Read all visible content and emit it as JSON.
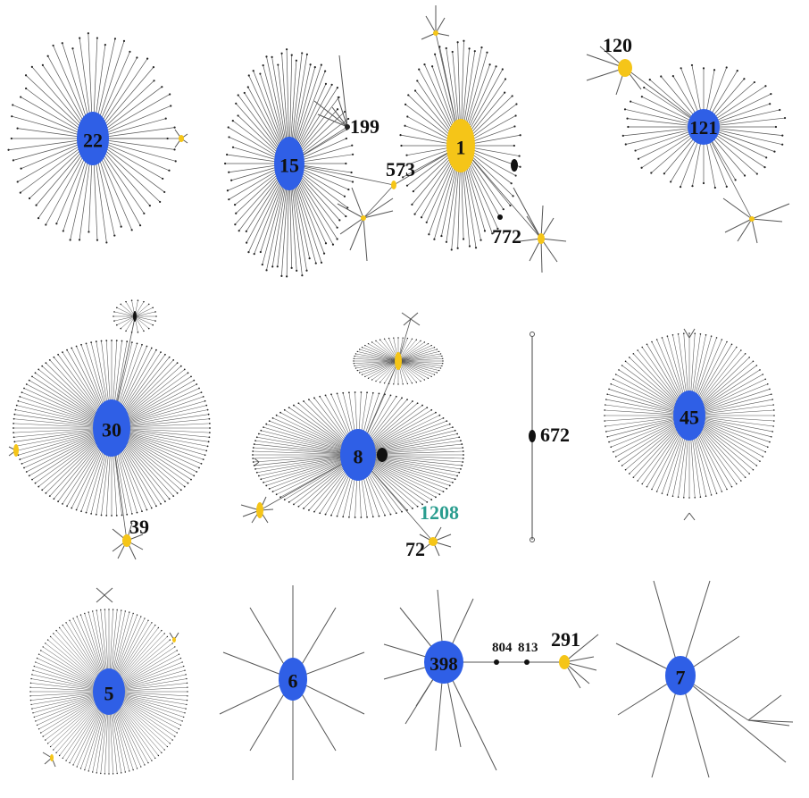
{
  "colors": {
    "hub_blue": "#2f5fe6",
    "hub_yellow": "#f5c518",
    "edge": "#555555",
    "teal_label": "#2a9d8f"
  },
  "networks": [
    {
      "id": "net-22",
      "hub_label": "22",
      "hub_color": "blue"
    },
    {
      "id": "net-15",
      "hub_label": "15",
      "hub_color": "blue"
    },
    {
      "id": "net-1",
      "hub_label": "1",
      "hub_color": "yellow"
    },
    {
      "id": "net-121",
      "hub_label": "121",
      "hub_color": "blue"
    },
    {
      "id": "net-30",
      "hub_label": "30",
      "hub_color": "blue"
    },
    {
      "id": "net-8",
      "hub_label": "8",
      "hub_color": "blue"
    },
    {
      "id": "net-45",
      "hub_label": "45",
      "hub_color": "blue"
    },
    {
      "id": "net-5",
      "hub_label": "5",
      "hub_color": "blue"
    },
    {
      "id": "net-6",
      "hub_label": "6",
      "hub_color": "blue"
    },
    {
      "id": "net-398",
      "hub_label": "398",
      "hub_color": "blue"
    },
    {
      "id": "net-7",
      "hub_label": "7",
      "hub_color": "blue"
    }
  ],
  "node_labels": {
    "n199": "199",
    "n573": "573",
    "n772": "772",
    "n120": "120",
    "n39": "39",
    "n1208": "1208",
    "n72": "72",
    "n672": "672",
    "n804": "804",
    "n813": "813",
    "n291": "291"
  }
}
